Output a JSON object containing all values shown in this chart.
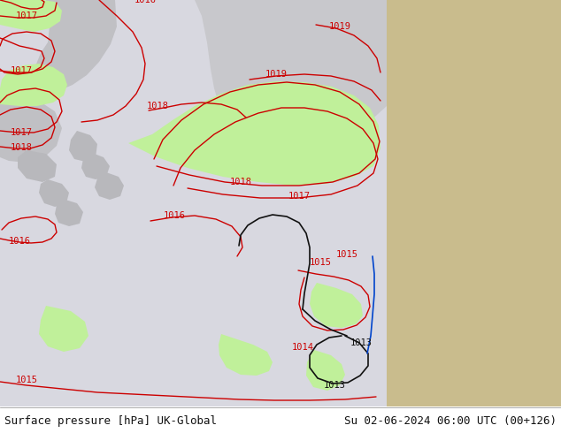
{
  "title_left": "Surface pressure [hPa] UK-Global",
  "title_right": "Su 02-06-2024 06:00 UTC (00+126)",
  "green_fill": "#c0f09a",
  "land_sandy": "#c9bc8d",
  "land_grey": "#c8c8cc",
  "sea_bg": "#d8d8e0",
  "contour_red": "#cc0000",
  "contour_black": "#111111",
  "contour_blue": "#0044cc",
  "footer_fs": 9,
  "fig_w": 6.34,
  "fig_h": 4.9,
  "dpi": 100
}
